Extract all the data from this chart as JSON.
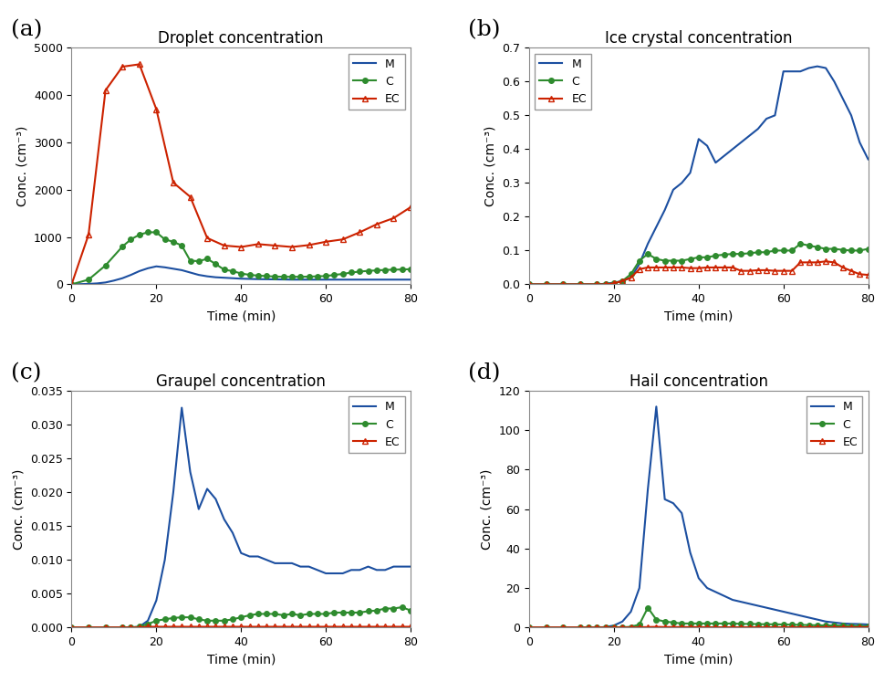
{
  "panel_a": {
    "title": "Droplet concentration",
    "label": "(a)",
    "ylabel": "Conc. (cm⁻³)",
    "xlabel": "Time (min)",
    "xlim": [
      0,
      80
    ],
    "ylim": [
      0,
      5000
    ],
    "yticks": [
      0,
      1000,
      2000,
      3000,
      4000,
      5000
    ],
    "xticks": [
      0,
      20,
      40,
      60,
      80
    ],
    "legend_loc": "upper right",
    "M_x": [
      0,
      2,
      4,
      6,
      8,
      10,
      12,
      14,
      16,
      18,
      20,
      22,
      24,
      26,
      28,
      30,
      32,
      34,
      36,
      38,
      40,
      42,
      44,
      46,
      48,
      50,
      52,
      54,
      56,
      58,
      60,
      62,
      64,
      66,
      68,
      70,
      72,
      74,
      76,
      78,
      80
    ],
    "M_y": [
      0,
      5,
      10,
      20,
      40,
      80,
      130,
      200,
      280,
      340,
      380,
      360,
      330,
      300,
      250,
      200,
      170,
      150,
      140,
      130,
      120,
      115,
      110,
      108,
      105,
      103,
      100,
      100,
      100,
      100,
      100,
      100,
      100,
      100,
      100,
      100,
      100,
      100,
      100,
      100,
      100
    ],
    "C_x": [
      0,
      4,
      8,
      12,
      14,
      16,
      18,
      20,
      22,
      24,
      26,
      28,
      30,
      32,
      34,
      36,
      38,
      40,
      42,
      44,
      46,
      48,
      50,
      52,
      54,
      56,
      58,
      60,
      62,
      64,
      66,
      68,
      70,
      72,
      74,
      76,
      78,
      80
    ],
    "C_y": [
      0,
      100,
      400,
      800,
      950,
      1050,
      1100,
      1100,
      950,
      900,
      820,
      500,
      490,
      540,
      430,
      310,
      280,
      230,
      200,
      185,
      175,
      165,
      160,
      160,
      160,
      163,
      170,
      175,
      200,
      220,
      250,
      270,
      285,
      295,
      305,
      310,
      315,
      320
    ],
    "EC_x": [
      0,
      4,
      8,
      12,
      16,
      20,
      24,
      28,
      32,
      36,
      40,
      44,
      48,
      52,
      56,
      60,
      64,
      68,
      72,
      76,
      80
    ],
    "EC_y": [
      0,
      1050,
      4100,
      4600,
      4650,
      3700,
      2150,
      1850,
      980,
      820,
      790,
      850,
      820,
      790,
      830,
      900,
      950,
      1100,
      1270,
      1400,
      1630
    ]
  },
  "panel_b": {
    "title": "Ice crystal concentration",
    "label": "(b)",
    "ylabel": "Conc. (cm⁻³)",
    "xlabel": "Time (min)",
    "xlim": [
      0,
      80
    ],
    "ylim": [
      0,
      0.7
    ],
    "yticks": [
      0.0,
      0.1,
      0.2,
      0.3,
      0.4,
      0.5,
      0.6,
      0.7
    ],
    "xticks": [
      0,
      20,
      40,
      60,
      80
    ],
    "legend_loc": "upper left",
    "M_x": [
      0,
      2,
      4,
      6,
      8,
      10,
      12,
      14,
      16,
      18,
      20,
      22,
      24,
      26,
      28,
      30,
      32,
      34,
      36,
      38,
      40,
      42,
      44,
      46,
      48,
      50,
      52,
      54,
      56,
      58,
      60,
      62,
      64,
      66,
      68,
      70,
      72,
      74,
      76,
      78,
      80
    ],
    "M_y": [
      0,
      0,
      0,
      0,
      0,
      0,
      0,
      0,
      0,
      0.002,
      0.005,
      0.01,
      0.02,
      0.06,
      0.12,
      0.17,
      0.22,
      0.28,
      0.3,
      0.33,
      0.43,
      0.41,
      0.36,
      0.38,
      0.4,
      0.42,
      0.44,
      0.46,
      0.49,
      0.5,
      0.63,
      0.63,
      0.63,
      0.64,
      0.645,
      0.64,
      0.6,
      0.55,
      0.5,
      0.42,
      0.37
    ],
    "C_x": [
      0,
      4,
      8,
      12,
      16,
      18,
      20,
      22,
      24,
      26,
      28,
      30,
      32,
      34,
      36,
      38,
      40,
      42,
      44,
      46,
      48,
      50,
      52,
      54,
      56,
      58,
      60,
      62,
      64,
      66,
      68,
      70,
      72,
      74,
      76,
      78,
      80
    ],
    "C_y": [
      0,
      0,
      0,
      0,
      0,
      0,
      0.003,
      0.01,
      0.03,
      0.07,
      0.09,
      0.075,
      0.07,
      0.07,
      0.07,
      0.075,
      0.08,
      0.08,
      0.085,
      0.088,
      0.09,
      0.09,
      0.092,
      0.095,
      0.095,
      0.1,
      0.1,
      0.1,
      0.12,
      0.115,
      0.11,
      0.105,
      0.105,
      0.102,
      0.1,
      0.1,
      0.105
    ],
    "EC_x": [
      0,
      4,
      8,
      12,
      16,
      18,
      20,
      22,
      24,
      26,
      28,
      30,
      32,
      34,
      36,
      38,
      40,
      42,
      44,
      46,
      48,
      50,
      52,
      54,
      56,
      58,
      60,
      62,
      64,
      66,
      68,
      70,
      72,
      74,
      76,
      78,
      80
    ],
    "EC_y": [
      0,
      0,
      0,
      0,
      0,
      0,
      0.003,
      0.01,
      0.02,
      0.045,
      0.05,
      0.05,
      0.05,
      0.05,
      0.05,
      0.048,
      0.048,
      0.05,
      0.05,
      0.05,
      0.05,
      0.04,
      0.04,
      0.042,
      0.042,
      0.04,
      0.04,
      0.04,
      0.065,
      0.065,
      0.065,
      0.068,
      0.065,
      0.05,
      0.04,
      0.03,
      0.028
    ]
  },
  "panel_c": {
    "title": "Graupel concentration",
    "label": "(c)",
    "ylabel": "Conc. (cm⁻³)",
    "xlabel": "Time (min)",
    "xlim": [
      0,
      80
    ],
    "ylim": [
      0,
      0.035
    ],
    "yticks": [
      0.0,
      0.005,
      0.01,
      0.015,
      0.02,
      0.025,
      0.03,
      0.035
    ],
    "xticks": [
      0,
      20,
      40,
      60,
      80
    ],
    "legend_loc": "upper right",
    "M_x": [
      0,
      2,
      4,
      6,
      8,
      10,
      12,
      14,
      16,
      18,
      20,
      22,
      24,
      26,
      28,
      30,
      32,
      34,
      36,
      38,
      40,
      42,
      44,
      46,
      48,
      50,
      52,
      54,
      56,
      58,
      60,
      62,
      64,
      66,
      68,
      70,
      72,
      74,
      76,
      78,
      80
    ],
    "M_y": [
      0,
      0,
      0,
      0,
      0,
      0,
      0,
      0,
      0.0001,
      0.001,
      0.004,
      0.01,
      0.02,
      0.0325,
      0.023,
      0.0175,
      0.0205,
      0.019,
      0.016,
      0.014,
      0.011,
      0.0105,
      0.0105,
      0.01,
      0.0095,
      0.0095,
      0.0095,
      0.009,
      0.009,
      0.0085,
      0.008,
      0.008,
      0.008,
      0.0085,
      0.0085,
      0.009,
      0.0085,
      0.0085,
      0.009,
      0.009,
      0.009
    ],
    "C_x": [
      0,
      4,
      8,
      12,
      14,
      16,
      18,
      20,
      22,
      24,
      26,
      28,
      30,
      32,
      34,
      36,
      38,
      40,
      42,
      44,
      46,
      48,
      50,
      52,
      54,
      56,
      58,
      60,
      62,
      64,
      66,
      68,
      70,
      72,
      74,
      76,
      78,
      80
    ],
    "C_y": [
      0,
      0,
      0,
      0,
      0,
      0.0001,
      0.0005,
      0.001,
      0.0012,
      0.0014,
      0.0015,
      0.0015,
      0.0012,
      0.001,
      0.001,
      0.001,
      0.0012,
      0.0015,
      0.0018,
      0.002,
      0.002,
      0.002,
      0.0018,
      0.002,
      0.0018,
      0.002,
      0.002,
      0.002,
      0.0022,
      0.0022,
      0.0022,
      0.0022,
      0.0024,
      0.0025,
      0.0028,
      0.0028,
      0.003,
      0.0025
    ],
    "EC_x": [
      0,
      4,
      8,
      12,
      14,
      16,
      18,
      20,
      22,
      24,
      26,
      28,
      30,
      32,
      34,
      36,
      38,
      40,
      42,
      44,
      46,
      48,
      50,
      52,
      54,
      56,
      58,
      60,
      62,
      64,
      66,
      68,
      70,
      72,
      74,
      76,
      78,
      80
    ],
    "EC_y": [
      0,
      0,
      0,
      0,
      0,
      0,
      0.0001,
      0.0001,
      0.0001,
      0.0001,
      0.0001,
      0.0001,
      0.0001,
      0.0001,
      0.0001,
      0.0001,
      0.0001,
      0.0001,
      0.0001,
      0.0001,
      0.0001,
      0.0001,
      0.0001,
      0.0001,
      0.0001,
      0.0001,
      0.0001,
      0.0001,
      0.0001,
      0.0001,
      0.0001,
      0.0001,
      0.0001,
      0.0001,
      0.0001,
      0.0001,
      0.0001,
      0.0001
    ]
  },
  "panel_d": {
    "title": "Hail concentration",
    "label": "(d)",
    "ylabel": "Conc. (cm⁻³)",
    "xlabel": "Time (min)",
    "xlim": [
      0,
      80
    ],
    "ylim": [
      0,
      120
    ],
    "yticks": [
      0,
      20,
      40,
      60,
      80,
      100,
      120
    ],
    "xticks": [
      0,
      20,
      40,
      60,
      80
    ],
    "legend_loc": "upper right",
    "M_x": [
      0,
      2,
      4,
      6,
      8,
      10,
      12,
      14,
      16,
      18,
      20,
      22,
      24,
      26,
      28,
      30,
      32,
      34,
      36,
      38,
      40,
      42,
      44,
      46,
      48,
      50,
      52,
      54,
      56,
      58,
      60,
      62,
      64,
      66,
      68,
      70,
      72,
      74,
      76,
      78,
      80
    ],
    "M_y": [
      0,
      0,
      0,
      0,
      0,
      0,
      0,
      0,
      0,
      0.2,
      1,
      3,
      8,
      20,
      70,
      112,
      65,
      63,
      58,
      38,
      25,
      20,
      18,
      16,
      14,
      13,
      12,
      11,
      10,
      9,
      8,
      7,
      6,
      5,
      4,
      3,
      2.5,
      2,
      1.8,
      1.7,
      1.5
    ],
    "C_x": [
      0,
      4,
      8,
      12,
      14,
      16,
      18,
      20,
      22,
      24,
      26,
      28,
      30,
      32,
      34,
      36,
      38,
      40,
      42,
      44,
      46,
      48,
      50,
      52,
      54,
      56,
      58,
      60,
      62,
      64,
      66,
      68,
      70,
      72,
      74,
      76,
      78,
      80
    ],
    "C_y": [
      0,
      0,
      0,
      0,
      0,
      0,
      0,
      0.05,
      0.1,
      0.3,
      1.5,
      10,
      4,
      3,
      2.5,
      2,
      2,
      2,
      2,
      2,
      2,
      2,
      1.8,
      1.8,
      1.7,
      1.6,
      1.6,
      1.5,
      1.4,
      1.3,
      1.2,
      1.1,
      1.0,
      1.0,
      0.9,
      0.8,
      0.7,
      0.6
    ],
    "EC_x": [
      0,
      4,
      8,
      12,
      14,
      16,
      18,
      20,
      22,
      24,
      26,
      28,
      30,
      32,
      34,
      36,
      38,
      40,
      42,
      44,
      46,
      48,
      50,
      52,
      54,
      56,
      58,
      60,
      62,
      64,
      66,
      68,
      70,
      72,
      74,
      76,
      78,
      80
    ],
    "EC_y": [
      0,
      0,
      0,
      0,
      0,
      0,
      0,
      0,
      0,
      0,
      0.1,
      0.2,
      0.3,
      0.2,
      0.2,
      0.2,
      0.2,
      0.2,
      0.1,
      0.1,
      0.1,
      0.1,
      0.1,
      0.1,
      0.1,
      0.1,
      0.1,
      0.1,
      0.1,
      0.1,
      0.1,
      0.1,
      0.1,
      0.1,
      0.1,
      0.1,
      0.1,
      0.1
    ]
  },
  "colors": {
    "M": "#1c4fa0",
    "C": "#2e8b2e",
    "EC": "#cc2200"
  },
  "spine_color": "#888888",
  "bg_color": "#ffffff",
  "label_fontsize": 18,
  "title_fontsize": 12,
  "tick_fontsize": 9,
  "axis_label_fontsize": 10
}
